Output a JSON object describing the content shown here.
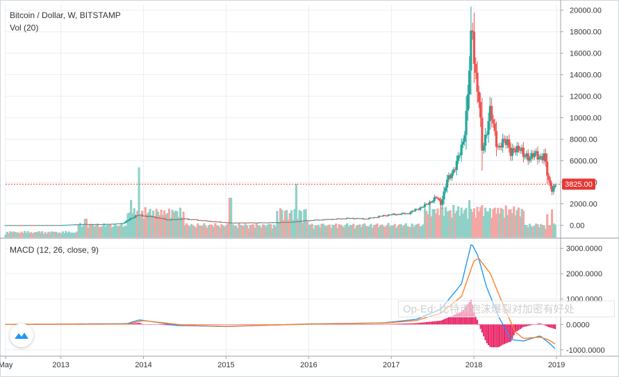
{
  "chart_title": {
    "main": "Bitcoin / Dollar, W, BITSTAMP",
    "volume": "Vol (20)",
    "macd": "MACD (12, 26, close, 9)"
  },
  "last_price_label": "3825.00",
  "watermark": "Op-Ed: 比特币泡沫爆裂对加密有好处",
  "colors": {
    "up": "#26a69a",
    "down": "#ef5350",
    "volume_up": "#8fd1c7",
    "volume_down": "#f4a6a2",
    "macd_line": "#2196f3",
    "signal_line": "#ff7f27",
    "histogram": "#e91e63",
    "last_price": "#e53935",
    "grid": "#e9eef3"
  },
  "chart_data": [
    {
      "type": "candlestick",
      "title": "Bitcoin / Dollar, W, BITSTAMP",
      "x_tick_labels": [
        "May",
        "2013",
        "2014",
        "2015",
        "2016",
        "2017",
        "2018",
        "2019"
      ],
      "x_tick_times": [
        2012.33,
        2013.0,
        2014.0,
        2015.0,
        2016.0,
        2017.0,
        2018.0,
        2019.0
      ],
      "x_range": [
        2012.33,
        2019.05
      ],
      "y_ticks": [
        0,
        2000,
        4000,
        6000,
        8000,
        10000,
        12000,
        14000,
        16000,
        18000,
        20000
      ],
      "y_tick_labels": [
        "0.00",
        "2000.00",
        "4000.00",
        "6000.00",
        "8000.00",
        "10000.00",
        "12000.00",
        "14000.00",
        "16000.00",
        "18000.00",
        "20000.00"
      ],
      "ylim": [
        -1200,
        20500
      ],
      "grid": true,
      "last_price": 3825,
      "price_keyframes": [
        [
          2012.33,
          5
        ],
        [
          2013.0,
          13
        ],
        [
          2013.25,
          100
        ],
        [
          2013.5,
          90
        ],
        [
          2013.75,
          180
        ],
        [
          2013.92,
          950
        ],
        [
          2014.1,
          800
        ],
        [
          2014.3,
          500
        ],
        [
          2014.5,
          600
        ],
        [
          2014.8,
          380
        ],
        [
          2015.05,
          230
        ],
        [
          2015.5,
          250
        ],
        [
          2015.8,
          300
        ],
        [
          2015.95,
          430
        ],
        [
          2016.5,
          650
        ],
        [
          2016.7,
          600
        ],
        [
          2016.95,
          950
        ],
        [
          2017.2,
          1100
        ],
        [
          2017.4,
          1800
        ],
        [
          2017.55,
          2600
        ],
        [
          2017.6,
          2000
        ],
        [
          2017.68,
          4200
        ],
        [
          2017.8,
          5800
        ],
        [
          2017.87,
          8000
        ],
        [
          2017.92,
          11000
        ],
        [
          2017.96,
          16500
        ],
        [
          2017.98,
          19000
        ],
        [
          2018.02,
          14000
        ],
        [
          2018.06,
          11500
        ],
        [
          2018.1,
          7000
        ],
        [
          2018.2,
          10500
        ],
        [
          2018.3,
          7000
        ],
        [
          2018.4,
          8200
        ],
        [
          2018.45,
          6500
        ],
        [
          2018.55,
          7500
        ],
        [
          2018.6,
          6300
        ],
        [
          2018.7,
          6500
        ],
        [
          2018.85,
          6400
        ],
        [
          2018.9,
          4200
        ],
        [
          2018.95,
          3300
        ],
        [
          2019.0,
          3825
        ]
      ],
      "volume": {
        "name": "Vol (20)",
        "spikes": [
          [
            2013.3,
            0.08
          ],
          [
            2013.85,
            0.16
          ],
          [
            2013.95,
            0.3
          ],
          [
            2014.15,
            0.12
          ],
          [
            2015.05,
            0.17
          ],
          [
            2015.85,
            0.23
          ],
          [
            2016.5,
            0.04
          ],
          [
            2017.6,
            0.08
          ],
          [
            2017.95,
            0.16
          ],
          [
            2018.08,
            0.13
          ],
          [
            2018.88,
            0.1
          ],
          [
            2018.95,
            0.12
          ]
        ]
      },
      "macd": {
        "title": "MACD (12, 26, close, 9)",
        "y_ticks": [
          -1000,
          0,
          1000,
          2000,
          3000
        ],
        "y_tick_labels": [
          "-1000.0000",
          "0.0000",
          "1000.0000",
          "2000.0000",
          "3000.0000"
        ],
        "ylim": [
          -1250,
          3400
        ],
        "macd_keyframes": [
          [
            2012.33,
            0
          ],
          [
            2013.8,
            30
          ],
          [
            2013.95,
            180
          ],
          [
            2014.15,
            90
          ],
          [
            2014.4,
            -40
          ],
          [
            2015.0,
            -80
          ],
          [
            2016.0,
            20
          ],
          [
            2016.9,
            60
          ],
          [
            2017.3,
            200
          ],
          [
            2017.6,
            600
          ],
          [
            2017.85,
            1600
          ],
          [
            2017.97,
            3200
          ],
          [
            2018.05,
            2700
          ],
          [
            2018.15,
            1500
          ],
          [
            2018.3,
            300
          ],
          [
            2018.45,
            -600
          ],
          [
            2018.6,
            -650
          ],
          [
            2018.8,
            -450
          ],
          [
            2018.9,
            -700
          ],
          [
            2019.0,
            -1000
          ]
        ],
        "signal_keyframes": [
          [
            2012.33,
            0
          ],
          [
            2013.8,
            15
          ],
          [
            2014.0,
            150
          ],
          [
            2014.2,
            80
          ],
          [
            2014.5,
            -30
          ],
          [
            2015.0,
            -70
          ],
          [
            2016.0,
            10
          ],
          [
            2016.9,
            50
          ],
          [
            2017.3,
            150
          ],
          [
            2017.6,
            450
          ],
          [
            2017.85,
            1100
          ],
          [
            2018.0,
            2500
          ],
          [
            2018.06,
            2600
          ],
          [
            2018.2,
            2000
          ],
          [
            2018.35,
            800
          ],
          [
            2018.5,
            -300
          ],
          [
            2018.6,
            -550
          ],
          [
            2018.8,
            -500
          ],
          [
            2018.9,
            -600
          ],
          [
            2019.0,
            -800
          ]
        ]
      }
    }
  ]
}
